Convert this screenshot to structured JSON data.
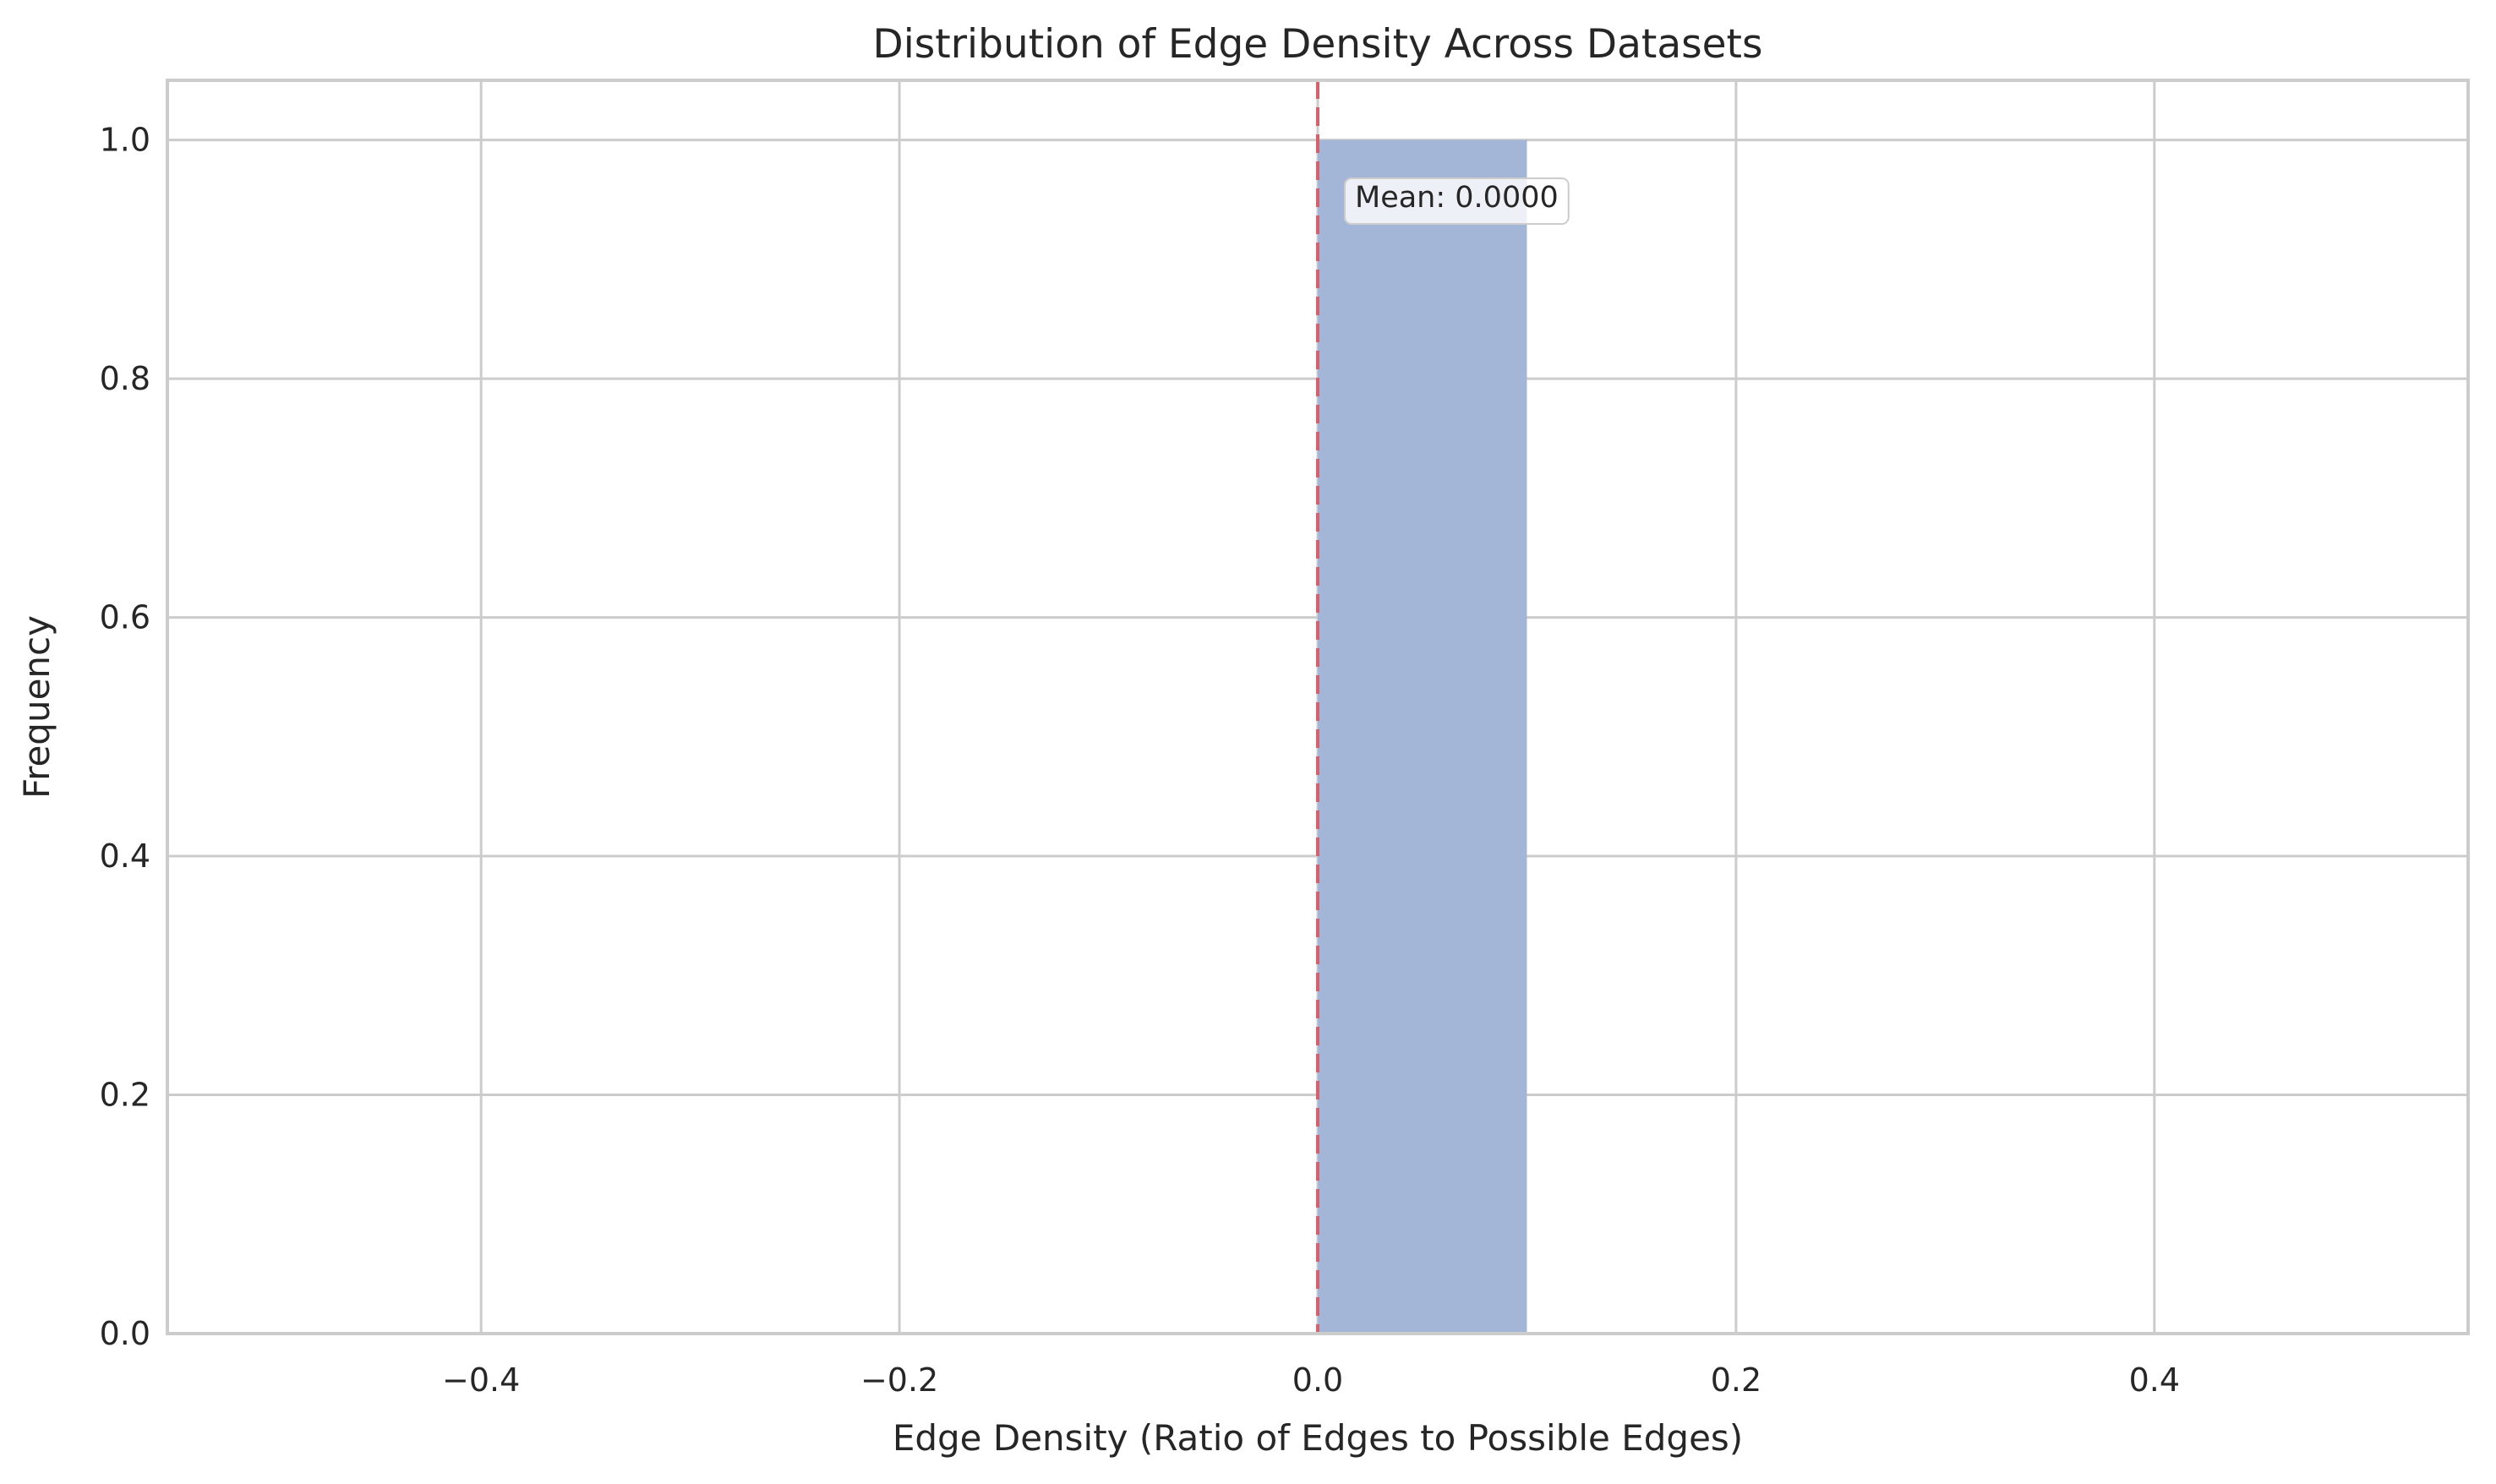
{
  "chart_data": {
    "type": "bar",
    "title": "Distribution of Edge Density Across Datasets",
    "xlabel": "Edge Density (Ratio of Edges to Possible Edges)",
    "ylabel": "Frequency",
    "xlim": [
      -0.55,
      0.55
    ],
    "ylim": [
      0,
      1.05
    ],
    "xticks": [
      -0.4,
      -0.2,
      0.0,
      0.2,
      0.4
    ],
    "yticks": [
      0.0,
      0.2,
      0.4,
      0.6,
      0.8,
      1.0
    ],
    "xtick_labels": [
      "−0.4",
      "−0.2",
      "0.0",
      "0.2",
      "0.4"
    ],
    "ytick_labels": [
      "0.0",
      "0.2",
      "0.4",
      "0.6",
      "0.8",
      "1.0"
    ],
    "bins": [
      {
        "start": 0.0,
        "end": 0.1,
        "count": 1
      }
    ],
    "mean_line": {
      "x": 0.0,
      "label": "Mean: 0.0000"
    },
    "grid": true,
    "colors": {
      "bar": "#a4b6d8",
      "mean_line": "#d9606a",
      "grid": "#cccccc",
      "spine": "#cccccc"
    }
  }
}
